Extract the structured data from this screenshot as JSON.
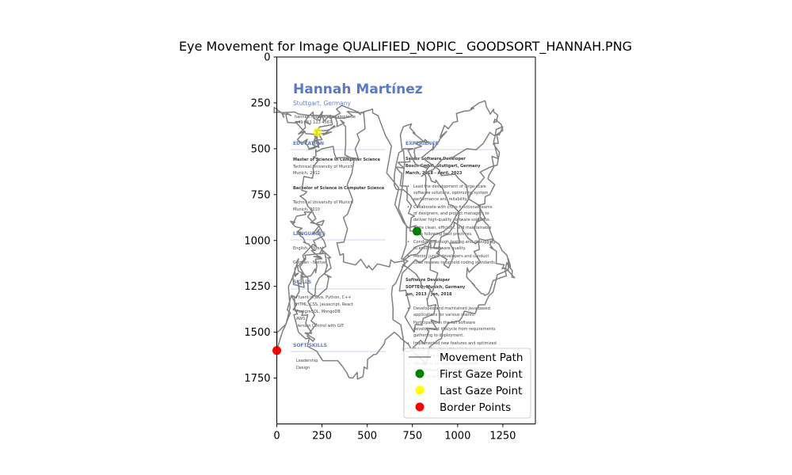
{
  "chart_data": {
    "type": "line",
    "title": "Eye Movement for Image QUALIFIED_NOPIC_ GOODSORT_HANNAH.PNG",
    "xlabel": "",
    "ylabel": "",
    "xlim": [
      0,
      1430
    ],
    "ylim": [
      2000,
      0
    ],
    "y_inverted": true,
    "x_ticks": [
      0,
      250,
      500,
      750,
      1000,
      1250
    ],
    "y_ticks": [
      0,
      250,
      500,
      750,
      1000,
      1250,
      1500,
      1750
    ],
    "grid": false,
    "legend_position": "lower-right",
    "series": [
      {
        "name": "Movement Path",
        "color": "#808080",
        "kind": "line"
      },
      {
        "name": "First Gaze Point",
        "color": "#008000",
        "kind": "marker",
        "x": [
          775
        ],
        "y": [
          950
        ]
      },
      {
        "name": "Last Gaze Point",
        "color": "#ffff00",
        "kind": "marker",
        "x": [
          225
        ],
        "y": [
          410
        ]
      },
      {
        "name": "Border Points",
        "color": "#ff0000",
        "kind": "marker",
        "x": [
          0
        ],
        "y": [
          1600
        ]
      }
    ],
    "path_waypoints": {
      "x": [
        775,
        720,
        660,
        760,
        820,
        700,
        650,
        780,
        840,
        700,
        690,
        800,
        880,
        760,
        690,
        850,
        950,
        1000,
        900,
        800,
        1050,
        1250,
        1200,
        1150,
        1100,
        1200,
        1260,
        1150,
        1050,
        1120,
        980,
        850,
        900,
        820,
        700,
        640,
        700,
        1000,
        1180,
        1250,
        1200,
        1120,
        1000,
        900,
        800,
        1050,
        1200,
        1300,
        1280,
        1150,
        950,
        820,
        650,
        500,
        420,
        250,
        120,
        80,
        150,
        250,
        200,
        120,
        100,
        200,
        250,
        150,
        120,
        100,
        250,
        300,
        200,
        120,
        0,
        80,
        160,
        200,
        180,
        300,
        260,
        200,
        150,
        200,
        250,
        450,
        480,
        300,
        0,
        30,
        100,
        200,
        320,
        250,
        180,
        120,
        200,
        260,
        400,
        560,
        700,
        880,
        650,
        500,
        350,
        420,
        380,
        300,
        200,
        225
      ],
      "y": [
        950,
        780,
        600,
        520,
        450,
        380,
        700,
        820,
        600,
        500,
        1100,
        1250,
        1350,
        1500,
        1200,
        1000,
        1150,
        900,
        700,
        650,
        500,
        380,
        600,
        800,
        950,
        1050,
        1150,
        1300,
        1200,
        1050,
        900,
        1100,
        1400,
        1550,
        1600,
        1250,
        1100,
        850,
        600,
        400,
        300,
        250,
        350,
        450,
        550,
        700,
        1000,
        1200,
        1100,
        1350,
        1450,
        1680,
        1500,
        1700,
        1750,
        1650,
        1500,
        1300,
        1200,
        1100,
        1050,
        950,
        900,
        850,
        950,
        1100,
        1250,
        1150,
        1050,
        1200,
        1300,
        1100,
        1600,
        1300,
        1450,
        1550,
        1350,
        1150,
        1000,
        900,
        750,
        600,
        500,
        550,
        300,
        320,
        300,
        310,
        360,
        420,
        380,
        450,
        500,
        420,
        300,
        350,
        280,
        320,
        900,
        1000,
        1120,
        1150,
        1080,
        780,
        380,
        330,
        480,
        410
      ]
    }
  },
  "resume": {
    "name": "Hannah Martínez",
    "location": "Stuttgart, Germany",
    "contact": [
      "hannah.martinez@example.de",
      "+49 711 123 4567"
    ],
    "education_heading": "EDUCATION",
    "edu1_title": "Master of Science in Computer Science",
    "edu1_school": "Technical University of Munich",
    "edu1_date": "Munich, 2012",
    "edu2_title": "Bachelor of Science in Computer Science",
    "edu2_school": "Technical University of Munich",
    "edu2_date": "Munich, 2010",
    "languages_heading": "LANGUAGES",
    "lang1": "English - Fluent",
    "lang2": "German - Native",
    "skills_heading": "SKILLS",
    "skills": [
      "Fluent in Java, Python, C++",
      "HTML, CSS, Javascript, React",
      "PostgreSQL, MongoDB",
      "AWS",
      "Version Control with GIT"
    ],
    "soft_heading": "SOFT SKILLS",
    "soft": [
      "Leadership",
      "Design"
    ],
    "experience_heading": "EXPERIENCE",
    "job1_title": "Senior Software Developer",
    "job1_company": "Bosch GmbH, Stuttgart, Germany",
    "job1_date": "March, 2018 - April, 2023",
    "job1_bullets": [
      "Lead the development of large-scale software solutions, optimizing system performance and reliability.",
      "Collaborate with cross-functional teams of designers, and project managers to deliver high-quality software solutions.",
      "Write clean, efficient, and maintainable code following best practices.",
      "Conduct thorough testing and debugging to ensure software quality.",
      "Mentor junior developers and conduct code reviews to uphold coding standards."
    ],
    "job2_title": "Software Developer",
    "job2_company": "SOFTEQ, Munich, Germany",
    "job2_date": "Jun, 2013 - Jan, 2018",
    "job2_bullets": [
      "Developed and maintained Java-based applications for various clients.",
      "Participated in the full software development lifecycle from requirements gathering to deployment.",
      "Implemented new features and optimized existing functionalities to improve application performance.",
      "Worked in an Agile development environment, participating in sprint planning and retrospectives."
    ]
  }
}
